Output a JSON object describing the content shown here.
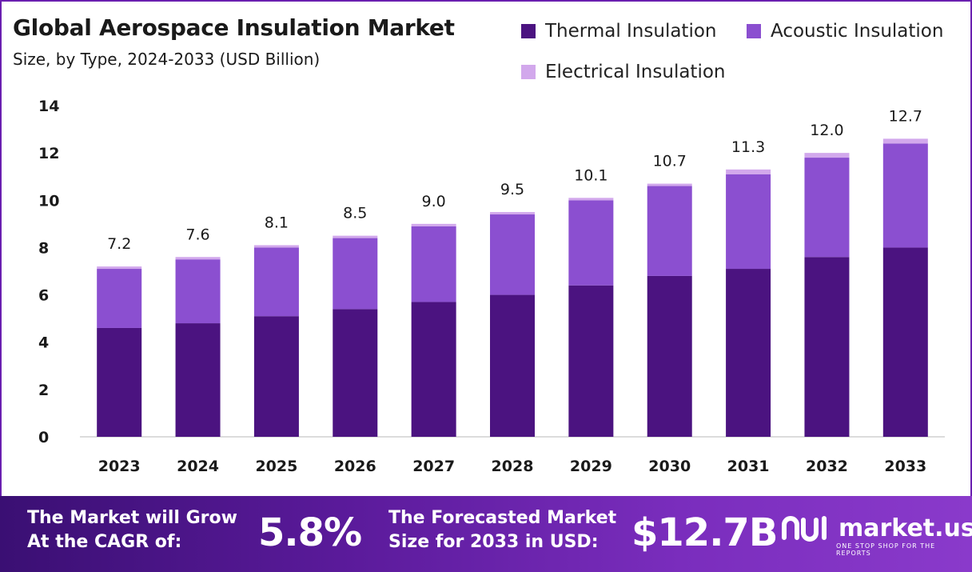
{
  "header": {
    "title": "Global Aerospace Insulation Market",
    "subtitle": "Size, by Type, 2024-2033 (USD Billion)"
  },
  "colors": {
    "thermal": "#4b1380",
    "acoustic": "#8b4fd0",
    "electrical": "#d2a8ec",
    "frame": "#6a1fb0"
  },
  "chart_data": {
    "type": "bar",
    "stacked": true,
    "categories": [
      "2023",
      "2024",
      "2025",
      "2026",
      "2027",
      "2028",
      "2029",
      "2030",
      "2031",
      "2032",
      "2033"
    ],
    "series": [
      {
        "name": "Thermal Insulation",
        "values": [
          4.6,
          4.8,
          5.1,
          5.4,
          5.7,
          6.0,
          6.4,
          6.8,
          7.1,
          7.6,
          8.0
        ]
      },
      {
        "name": "Acoustic Insulation",
        "values": [
          2.5,
          2.7,
          2.9,
          3.0,
          3.2,
          3.4,
          3.6,
          3.8,
          4.0,
          4.2,
          4.4
        ]
      },
      {
        "name": "Electrical Insulation",
        "values": [
          0.1,
          0.1,
          0.1,
          0.1,
          0.1,
          0.1,
          0.1,
          0.1,
          0.2,
          0.2,
          0.2
        ]
      }
    ],
    "totals": [
      "7.2",
      "7.6",
      "8.1",
      "8.5",
      "9.0",
      "9.5",
      "10.1",
      "10.7",
      "11.3",
      "12.0",
      "12.7"
    ],
    "ylim": [
      0,
      14
    ],
    "yticks": [
      "0",
      "2",
      "4",
      "6",
      "8",
      "10",
      "12",
      "14"
    ],
    "grid": false,
    "legend": "top-right"
  },
  "footer": {
    "cagr_label_line1": "The Market will Grow",
    "cagr_label_line2": "At the CAGR of:",
    "cagr_value": "5.8%",
    "forecast_label_line1": "The Forecasted Market",
    "forecast_label_line2": "Size for 2033 in USD:",
    "forecast_value": "$12.7B",
    "brand_name": "market.us",
    "brand_tagline": "ONE STOP SHOP FOR THE REPORTS"
  }
}
